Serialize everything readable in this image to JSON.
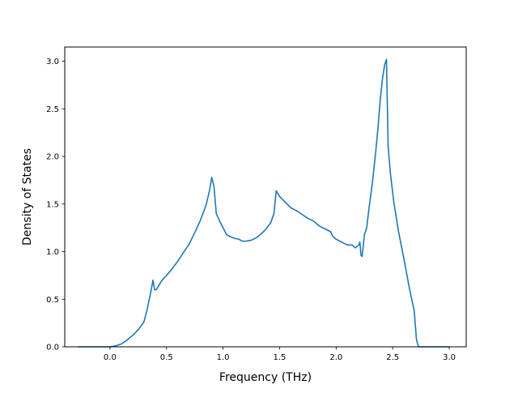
{
  "chart_data": {
    "type": "line",
    "title": "",
    "xlabel": "Frequency (THz)",
    "ylabel": "Density of States",
    "xlim": [
      -0.4,
      3.15
    ],
    "ylim": [
      0.0,
      3.15
    ],
    "xticks": [
      {
        "value": 0.0,
        "label": "0.0"
      },
      {
        "value": 0.5,
        "label": "0.5"
      },
      {
        "value": 1.0,
        "label": "1.0"
      },
      {
        "value": 1.5,
        "label": "1.5"
      },
      {
        "value": 2.0,
        "label": "2.0"
      },
      {
        "value": 2.5,
        "label": "2.5"
      },
      {
        "value": 3.0,
        "label": "3.0"
      }
    ],
    "yticks": [
      {
        "value": 0.0,
        "label": "0.0"
      },
      {
        "value": 0.5,
        "label": "0.5"
      },
      {
        "value": 1.0,
        "label": "1.0"
      },
      {
        "value": 1.5,
        "label": "1.5"
      },
      {
        "value": 2.0,
        "label": "2.0"
      },
      {
        "value": 2.5,
        "label": "2.5"
      },
      {
        "value": 3.0,
        "label": "3.0"
      }
    ],
    "grid": false,
    "legend": "none",
    "series": [
      {
        "color": "#1f77b4",
        "x": [
          -0.28,
          0.0,
          0.05,
          0.1,
          0.15,
          0.2,
          0.25,
          0.3,
          0.33,
          0.36,
          0.38,
          0.395,
          0.41,
          0.43,
          0.46,
          0.5,
          0.55,
          0.6,
          0.65,
          0.7,
          0.75,
          0.8,
          0.85,
          0.88,
          0.9,
          0.92,
          0.94,
          0.97,
          1.0,
          1.03,
          1.06,
          1.1,
          1.14,
          1.17,
          1.2,
          1.25,
          1.3,
          1.35,
          1.38,
          1.42,
          1.45,
          1.47,
          1.5,
          1.55,
          1.6,
          1.65,
          1.7,
          1.75,
          1.8,
          1.85,
          1.9,
          1.95,
          1.97,
          2.0,
          2.05,
          2.1,
          2.14,
          2.17,
          2.2,
          2.21,
          2.22,
          2.23,
          2.25,
          2.27,
          2.29,
          2.32,
          2.35,
          2.37,
          2.39,
          2.41,
          2.43,
          2.445,
          2.46,
          2.48,
          2.51,
          2.55,
          2.6,
          2.65,
          2.69,
          2.71,
          2.72,
          2.73,
          2.76,
          3.0
        ],
        "y": [
          0.0,
          0.0,
          0.01,
          0.03,
          0.07,
          0.12,
          0.18,
          0.26,
          0.4,
          0.57,
          0.7,
          0.6,
          0.6,
          0.64,
          0.7,
          0.75,
          0.82,
          0.9,
          0.99,
          1.08,
          1.2,
          1.33,
          1.49,
          1.64,
          1.78,
          1.68,
          1.4,
          1.32,
          1.25,
          1.18,
          1.16,
          1.14,
          1.13,
          1.11,
          1.11,
          1.12,
          1.15,
          1.2,
          1.24,
          1.3,
          1.4,
          1.64,
          1.58,
          1.52,
          1.46,
          1.43,
          1.39,
          1.35,
          1.32,
          1.27,
          1.24,
          1.21,
          1.16,
          1.13,
          1.1,
          1.07,
          1.07,
          1.04,
          1.07,
          1.1,
          0.96,
          0.95,
          1.18,
          1.25,
          1.45,
          1.72,
          2.05,
          2.3,
          2.6,
          2.82,
          2.97,
          3.02,
          2.1,
          1.82,
          1.52,
          1.22,
          0.92,
          0.6,
          0.38,
          0.08,
          0.03,
          0.0,
          0.0,
          0.0
        ]
      }
    ]
  }
}
